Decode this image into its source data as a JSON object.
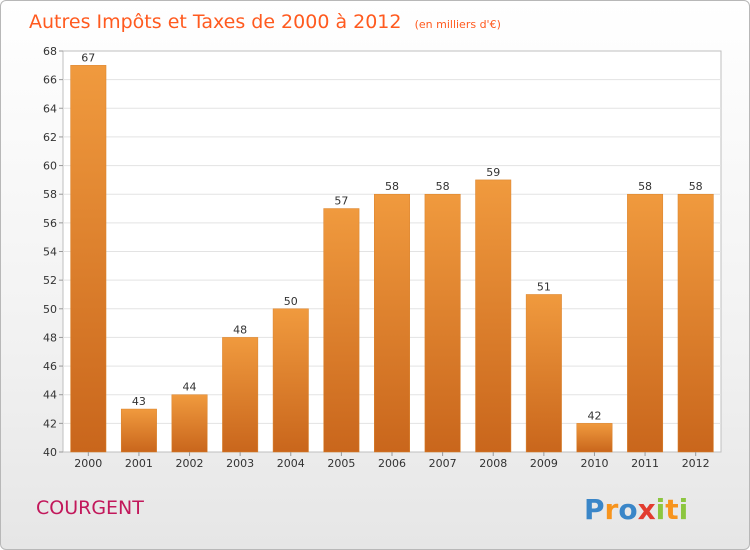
{
  "chart_data": {
    "type": "bar",
    "title": "Autres Impôts et Taxes de 2000 à 2012",
    "subtitle": "(en milliers d'€)",
    "categories": [
      "2000",
      "2001",
      "2002",
      "2003",
      "2004",
      "2005",
      "2006",
      "2007",
      "2008",
      "2009",
      "2010",
      "2011",
      "2012"
    ],
    "values": [
      67,
      43,
      44,
      48,
      50,
      57,
      58,
      58,
      59,
      51,
      42,
      58,
      58
    ],
    "xlabel": "",
    "ylabel": "",
    "ylim": [
      40,
      68
    ],
    "yticks": [
      40,
      42,
      44,
      46,
      48,
      50,
      52,
      54,
      56,
      58,
      60,
      62,
      64,
      66,
      68
    ],
    "grid": true,
    "bar_color": "#f09a3e",
    "bar_color_dark": "#c9661c"
  },
  "commune": "COURGENT",
  "logo": {
    "letters": [
      "P",
      "r",
      "o",
      "x",
      "i",
      "t",
      "i"
    ],
    "colors": [
      "#3a86c8",
      "#f7941d",
      "#3a86c8",
      "#e23c2f",
      "#8cc63f",
      "#f7941d",
      "#8cc63f"
    ]
  }
}
